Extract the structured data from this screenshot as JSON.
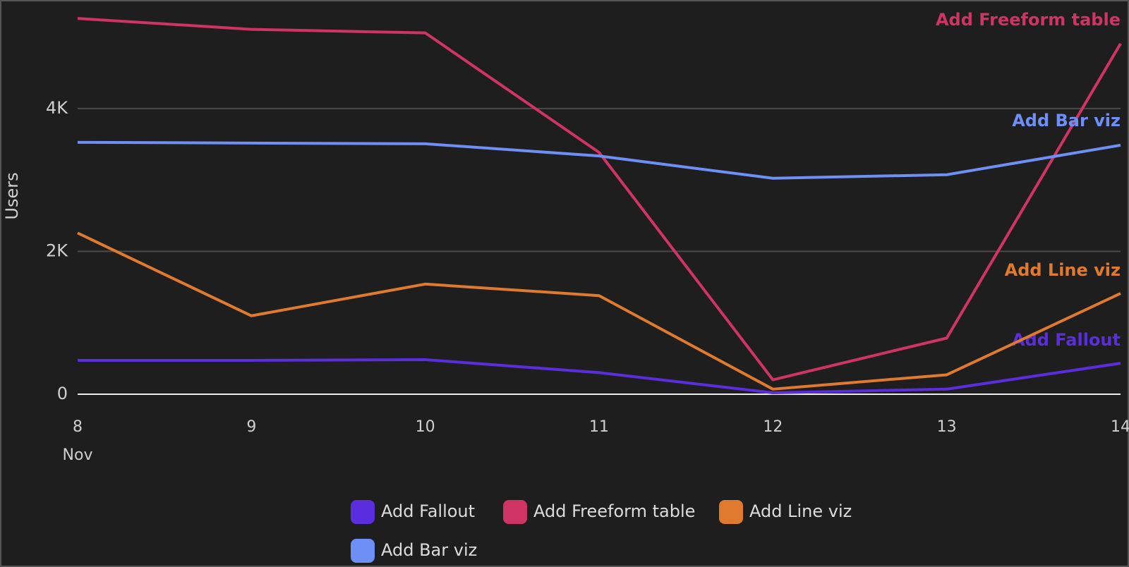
{
  "chart_data": {
    "type": "line",
    "y_label": "Users",
    "x": [
      8,
      9,
      10,
      11,
      12,
      13,
      14
    ],
    "x_sublabel": "Nov",
    "xlim": [
      8,
      14
    ],
    "xticks": [
      8,
      9,
      10,
      11,
      12,
      13,
      14
    ],
    "ylim": [
      0,
      5400
    ],
    "yticks": [
      0,
      {
        "value": 2000,
        "label": "2K"
      },
      {
        "value": 4000,
        "label": "4K"
      }
    ],
    "grid": true,
    "series": [
      {
        "name": "Add Fallout",
        "color": "#5a2ede",
        "values": [
          474,
          474,
          484,
          302,
          20,
          71,
          433
        ]
      },
      {
        "name": "Add Freeform table",
        "color": "#cf3464",
        "values": [
          5260,
          5108,
          5058,
          3385,
          202,
          786,
          4907
        ]
      },
      {
        "name": "Add Line viz",
        "color": "#e07a2e",
        "values": [
          2257,
          1098,
          1542,
          1380,
          71,
          272,
          1411
        ]
      },
      {
        "name": "Add Bar viz",
        "color": "#6e8ff5",
        "values": [
          3526,
          3516,
          3506,
          3335,
          3023,
          3073,
          3486
        ]
      }
    ]
  }
}
